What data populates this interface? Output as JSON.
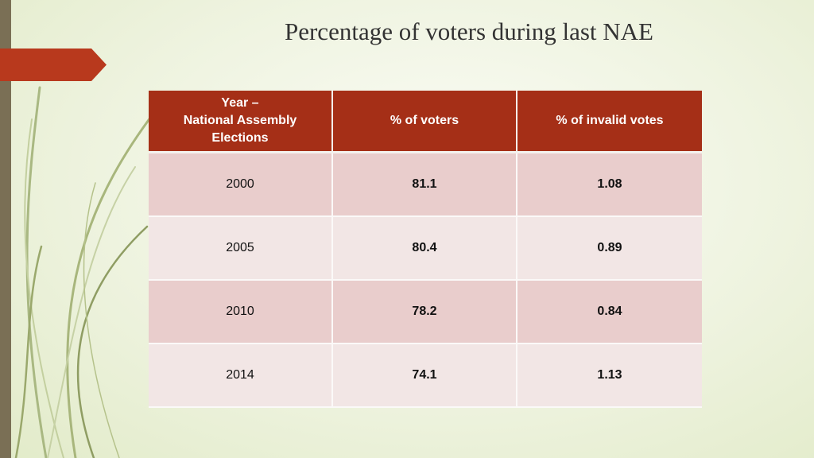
{
  "slide": {
    "title": "Percentage of voters during last NAE"
  },
  "table": {
    "headers": [
      "Year –",
      "National Assembly",
      "Elections",
      "% of voters",
      "% of invalid votes"
    ],
    "rows": [
      {
        "year": "2000",
        "voters": "81.1",
        "invalid": "1.08"
      },
      {
        "year": "2005",
        "voters": "80.4",
        "invalid": "0.89"
      },
      {
        "year": "2010",
        "voters": "78.2",
        "invalid": "0.84"
      },
      {
        "year": "2014",
        "voters": "74.1",
        "invalid": "1.13"
      }
    ]
  },
  "colors": {
    "header_bg": "#a52f17",
    "row_odd": "#e9cdcc",
    "row_even": "#f2e6e5",
    "accent_tab": "#b8391d",
    "left_bar": "#7a6f55"
  }
}
